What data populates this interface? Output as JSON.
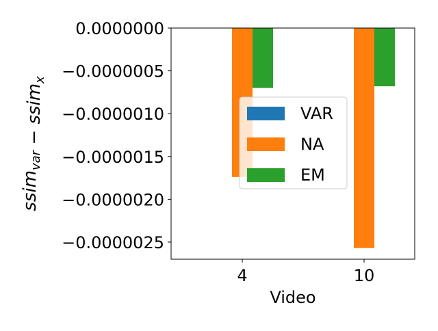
{
  "chart_data": {
    "type": "bar",
    "categories": [
      "4",
      "10"
    ],
    "series": [
      {
        "name": "VAR",
        "color": "#1f77b4",
        "values": [
          0.0,
          0.0
        ]
      },
      {
        "name": "NA",
        "color": "#ff7f0e",
        "values": [
          -1.74e-06,
          -2.57e-06
        ]
      },
      {
        "name": "EM",
        "color": "#2ca02c",
        "values": [
          -7e-07,
          -6.8e-07
        ]
      }
    ],
    "xlabel": "Video",
    "ylabel": "ssim_var − ssim_x",
    "ylim": [
      -2.7e-06,
      0.0
    ],
    "yticks": [
      {
        "value": 0.0,
        "label": "0.0000000"
      },
      {
        "value": -5e-07,
        "label": "−0.0000005"
      },
      {
        "value": -1e-06,
        "label": "−0.0000010"
      },
      {
        "value": -1.5e-06,
        "label": "−0.0000015"
      },
      {
        "value": -2e-06,
        "label": "−0.0000020"
      },
      {
        "value": -2.5e-06,
        "label": "−0.0000025"
      }
    ],
    "grid": false,
    "legend_position": "center"
  }
}
